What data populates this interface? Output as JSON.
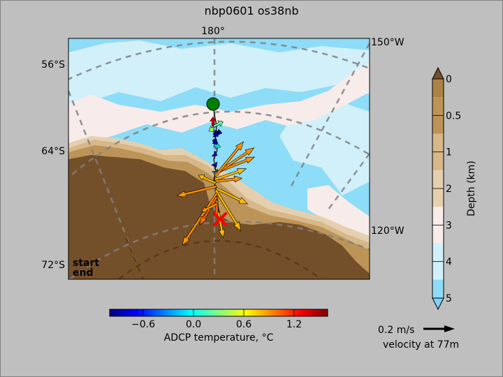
{
  "title": "nbp0601 os38nb",
  "map": {
    "lon_labels": [
      "180°",
      "150°W",
      "120°W"
    ],
    "lat_labels": [
      "56°S",
      "64°S",
      "72°S"
    ],
    "start_label": "start",
    "end_label": "end",
    "start_color": "#008000",
    "end_color": "#ff0000",
    "land_color": "#74502a"
  },
  "depth_colorbar": {
    "label": "Depth (km)",
    "ticks": [
      "0",
      "0.5",
      "1",
      "2",
      "3",
      "4",
      "5"
    ],
    "colors": [
      "#ab8347",
      "#bd9458",
      "#d6b889",
      "#e6cfae",
      "#f7ece9",
      "#d2f0fa",
      "#8ddcf8"
    ]
  },
  "temp_colorbar": {
    "label": "ADCP temperature, °C",
    "ticks": [
      "−0.6",
      "0.0",
      "0.6",
      "1.2"
    ],
    "range": [
      -1.0,
      1.6
    ]
  },
  "scale": {
    "label": "0.2 m/s",
    "depth_label": "velocity at 77m",
    "speed": 0.2
  },
  "chart_data": {
    "type": "quiver",
    "title": "nbp0601 os38nb",
    "track": {
      "start": [
        180.0,
        -62.3
      ],
      "end": [
        178.7,
        -69.0
      ]
    },
    "vectors": [
      {
        "lon": 180.0,
        "lat": -63.6,
        "u": 0.0,
        "v": 0.06,
        "t": 1.4
      },
      {
        "lon": 179.9,
        "lat": -63.6,
        "u": 0.06,
        "v": 0.03,
        "t": 0.2
      },
      {
        "lon": 179.9,
        "lat": -63.7,
        "u": -0.03,
        "v": -0.02,
        "t": 0.4
      },
      {
        "lon": 179.8,
        "lat": -63.9,
        "u": 0.05,
        "v": -0.01,
        "t": -1.0
      },
      {
        "lon": 179.9,
        "lat": -64.0,
        "u": 0.03,
        "v": -0.02,
        "t": -0.9
      },
      {
        "lon": 180.0,
        "lat": -64.4,
        "u": 0.03,
        "v": -0.02,
        "t": -0.9
      },
      {
        "lon": 179.8,
        "lat": -64.7,
        "u": 0.04,
        "v": -0.01,
        "t": -0.1
      },
      {
        "lon": 179.8,
        "lat": -65.2,
        "u": 0.02,
        "v": -0.01,
        "t": -0.7
      },
      {
        "lon": 179.7,
        "lat": -65.8,
        "u": 0.01,
        "v": -0.02,
        "t": -0.8
      },
      {
        "lon": 179.6,
        "lat": -66.2,
        "u": 0.01,
        "v": -0.02,
        "t": -0.2
      },
      {
        "lon": 179.6,
        "lat": -66.3,
        "u": 0.25,
        "v": 0.1,
        "t": 0.9
      },
      {
        "lon": 179.7,
        "lat": -66.4,
        "u": 0.25,
        "v": 0.17,
        "t": 0.9
      },
      {
        "lon": 179.6,
        "lat": -66.5,
        "u": 0.18,
        "v": 0.22,
        "t": 0.9
      },
      {
        "lon": 179.7,
        "lat": -66.7,
        "u": 0.2,
        "v": 0.07,
        "t": 0.8
      },
      {
        "lon": 179.6,
        "lat": -66.8,
        "u": 0.17,
        "v": 0.02,
        "t": 0.9
      },
      {
        "lon": 179.5,
        "lat": -66.9,
        "u": -0.11,
        "v": 0.05,
        "t": 0.8
      },
      {
        "lon": 179.4,
        "lat": -67.1,
        "u": -0.25,
        "v": -0.06,
        "t": 0.9
      },
      {
        "lon": 179.4,
        "lat": -67.2,
        "u": 0.2,
        "v": -0.1,
        "t": 0.8
      },
      {
        "lon": 179.5,
        "lat": -67.3,
        "u": 0.16,
        "v": -0.26,
        "t": 0.8
      },
      {
        "lon": 179.3,
        "lat": -67.5,
        "u": -0.22,
        "v": -0.33,
        "t": 0.9
      },
      {
        "lon": 179.3,
        "lat": -67.7,
        "u": -0.11,
        "v": -0.18,
        "t": 1.0
      },
      {
        "lon": 179.3,
        "lat": -67.9,
        "u": 0.0,
        "v": -0.1,
        "t": 1.0
      },
      {
        "lon": 179.2,
        "lat": -68.1,
        "u": -0.1,
        "v": -0.05,
        "t": 0.9
      },
      {
        "lon": 179.0,
        "lat": -68.6,
        "u": 0.03,
        "v": -0.16,
        "t": 0.8
      }
    ]
  }
}
